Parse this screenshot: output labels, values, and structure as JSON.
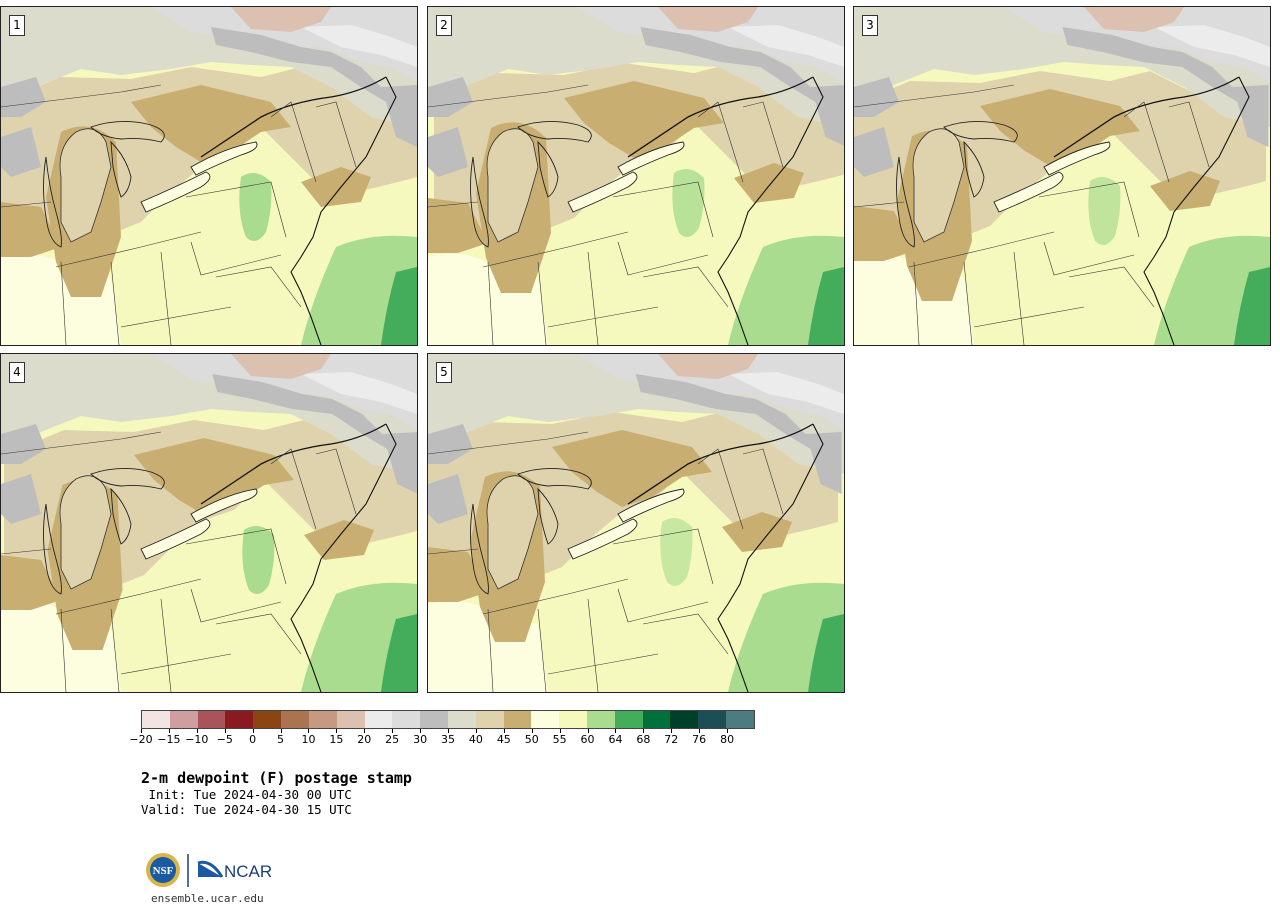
{
  "title": "2-m dewpoint (F) postage stamp",
  "init_line": " Init: Tue 2024-04-30 00 UTC",
  "valid_line": "Valid: Tue 2024-04-30 15 UTC",
  "url": "ensemble.ucar.edu",
  "logos": {
    "nsf": "NSF",
    "ncar": "NCAR"
  },
  "panels": [
    {
      "label": "1"
    },
    {
      "label": "2"
    },
    {
      "label": "3"
    },
    {
      "label": "4"
    },
    {
      "label": "5"
    }
  ],
  "colorbar": {
    "colors": [
      "#f3e4e4",
      "#cf9ea0",
      "#a9545a",
      "#8a1a1f",
      "#8b4513",
      "#aa7450",
      "#c59a80",
      "#dcc0b0",
      "#ececec",
      "#dcdcdc",
      "#bdbdbd",
      "#dcdccc",
      "#dfd3ad",
      "#c9ae72",
      "#fdfee0",
      "#f5f9bd",
      "#a9dc8e",
      "#44ad5c",
      "#00713a",
      "#00402a",
      "#1b4f55",
      "#4c7b80"
    ],
    "tick_labels": [
      "−20",
      "−15",
      "−10",
      "−5",
      "0",
      "5",
      "10",
      "15",
      "20",
      "25",
      "30",
      "35",
      "40",
      "45",
      "50",
      "55",
      "60",
      "64",
      "68",
      "72",
      "76",
      "80"
    ]
  }
}
